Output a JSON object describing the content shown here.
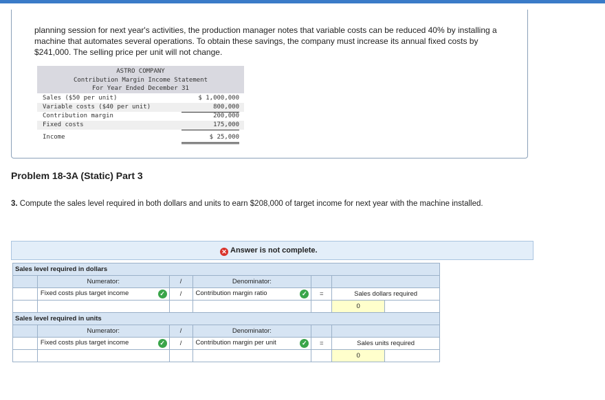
{
  "intro_text": "planning session for next year's activities, the production manager notes that variable costs can be reduced 40% by installing a machine that automates several operations. To obtain these savings, the company must increase its annual fixed costs by $241,000. The selling price per unit will not change.",
  "statement": {
    "company": "ASTRO COMPANY",
    "title": "Contribution Margin Income Statement",
    "period": "For Year Ended December 31",
    "rows": [
      {
        "label": "Sales ($50 per unit)",
        "amount": "$ 1,000,000"
      },
      {
        "label": "Variable costs ($40 per unit)",
        "amount": "800,000"
      },
      {
        "label": "Contribution margin",
        "amount": "200,000"
      },
      {
        "label": "Fixed costs",
        "amount": "175,000"
      },
      {
        "label": "Income",
        "amount": "$ 25,000"
      }
    ]
  },
  "problem_title": "Problem 18-3A (Static) Part 3",
  "question": {
    "number": "3.",
    "text": "Compute the sales level required in both dollars and units to earn $208,000 of target income for next year with the machine installed."
  },
  "banner": {
    "icon": "x-circle-icon",
    "text": "Answer is not complete."
  },
  "dollars_section": {
    "title": "Sales level required in dollars",
    "numerator_label": "Numerator:",
    "slash": "/",
    "denominator_label": "Denominator:",
    "equals": "=",
    "numerator_value": "Fixed costs plus target income",
    "denominator_value": "Contribution margin ratio",
    "result_label": "Sales dollars required",
    "result_value": "0"
  },
  "units_section": {
    "title": "Sales level required in units",
    "numerator_label": "Numerator:",
    "slash": "/",
    "denominator_label": "Denominator:",
    "equals": "=",
    "numerator_value": "Fixed costs plus target income",
    "denominator_value": "Contribution margin per unit",
    "result_label": "Sales units required",
    "result_value": "0"
  },
  "colors": {
    "accent": "#3a7bc8",
    "check": "#3aa54a",
    "error": "#d9332b",
    "header_bg": "#d6e4f3"
  }
}
